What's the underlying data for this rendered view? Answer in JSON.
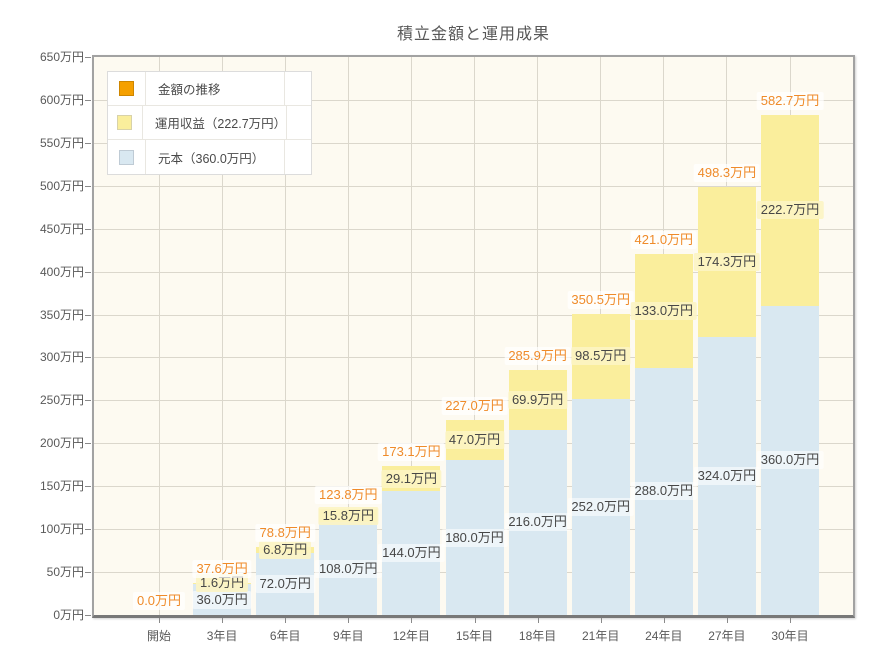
{
  "title": "積立金額と運用成果",
  "unit": "万円",
  "legend": {
    "items": [
      {
        "label": "金額の推移",
        "color": "#F5A000",
        "border": "#CE8600"
      },
      {
        "label": "運用収益（222.7万円）",
        "color": "#FAEE9C",
        "border": "#D8D2A9"
      },
      {
        "label": "元本（360.0万円）",
        "color": "#D9E8F1",
        "border": "#BFCBD5"
      }
    ]
  },
  "chart_data": {
    "type": "bar",
    "stacked": true,
    "title": "積立金額と運用成果",
    "categories": [
      "開始",
      "3年目",
      "6年目",
      "9年目",
      "12年目",
      "15年目",
      "18年目",
      "21年目",
      "24年目",
      "27年目",
      "30年目"
    ],
    "series": [
      {
        "name": "元本（360.0万円）",
        "role": "principal",
        "color": "#D9E8F1",
        "values": [
          0,
          36.0,
          72.0,
          108.0,
          144.0,
          180.0,
          216.0,
          252.0,
          288.0,
          324.0,
          360.0
        ],
        "value_labels": [
          "",
          "36.0万円",
          "72.0万円",
          "108.0万円",
          "144.0万円",
          "180.0万円",
          "216.0万円",
          "252.0万円",
          "288.0万円",
          "324.0万円",
          "360.0万円"
        ]
      },
      {
        "name": "運用収益（222.7万円）",
        "role": "profit",
        "color": "#FAEE9C",
        "values": [
          0,
          1.6,
          6.8,
          15.8,
          29.1,
          47.0,
          69.9,
          98.5,
          133.0,
          174.3,
          222.7
        ],
        "value_labels": [
          "",
          "1.6万円",
          "6.8万円",
          "15.8万円",
          "29.1万円",
          "47.0万円",
          "69.9万円",
          "98.5万円",
          "133.0万円",
          "174.3万円",
          "222.7万円"
        ]
      }
    ],
    "totals": [
      0.0,
      37.6,
      78.8,
      123.8,
      173.1,
      227.0,
      285.9,
      350.5,
      421.0,
      498.3,
      582.7
    ],
    "total_labels": [
      "0.0万円",
      "37.6万円",
      "78.8万円",
      "123.8万円",
      "173.1万円",
      "227.0万円",
      "285.9万円",
      "350.5万円",
      "421.0万円",
      "498.3万円",
      "582.7万円"
    ],
    "total_label_color": "#EF8B2A",
    "ylim": [
      0,
      650
    ],
    "y_tick_step": 50,
    "y_tick_labels": [
      "0万円",
      "50万円",
      "100万円",
      "150万円",
      "200万円",
      "250万円",
      "300万円",
      "350万円",
      "400万円",
      "450万円",
      "500万円",
      "550万円",
      "600万円",
      "650万円"
    ],
    "xlabel": "",
    "ylabel": "",
    "grid": true,
    "legend_position": "top-left"
  },
  "colors": {
    "plot_background": "#FDFAF1",
    "gridline": "#DBD7CC",
    "plot_border": "#A2A2A2",
    "axis_line": "#787878",
    "axis_text": "#595959",
    "segment_text": "#474747",
    "accent_orange": "#F5A000"
  }
}
